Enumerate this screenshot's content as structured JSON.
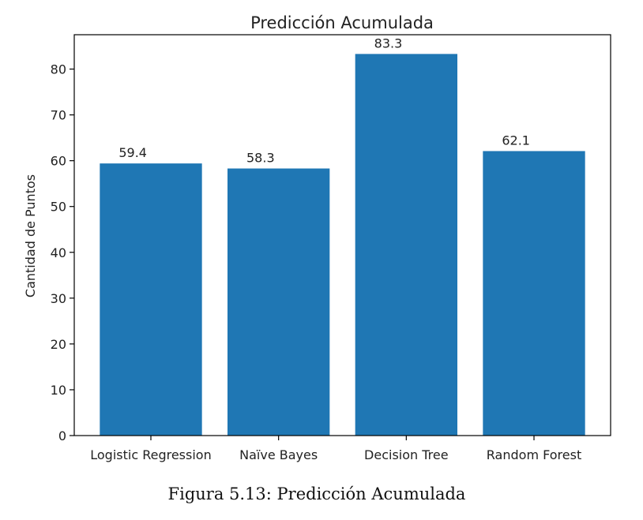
{
  "chart_data": {
    "type": "bar",
    "title": "Predicción Acumulada",
    "xlabel": "",
    "ylabel": "Cantidad de Puntos",
    "categories": [
      "Logistic Regression",
      "Naïve Bayes",
      "Decision Tree",
      "Random Forest"
    ],
    "values": [
      59.4,
      58.3,
      83.3,
      62.1
    ],
    "data_labels": [
      "59.4",
      "58.3",
      "83.3",
      "62.1"
    ],
    "yticks": [
      0,
      10,
      20,
      30,
      40,
      50,
      60,
      70,
      80
    ],
    "ylim": [
      0,
      87.5
    ],
    "grid": false,
    "legend": "none",
    "bar_color": "#1f77b4"
  },
  "caption": "Figura 5.13: Predicción Acumulada"
}
